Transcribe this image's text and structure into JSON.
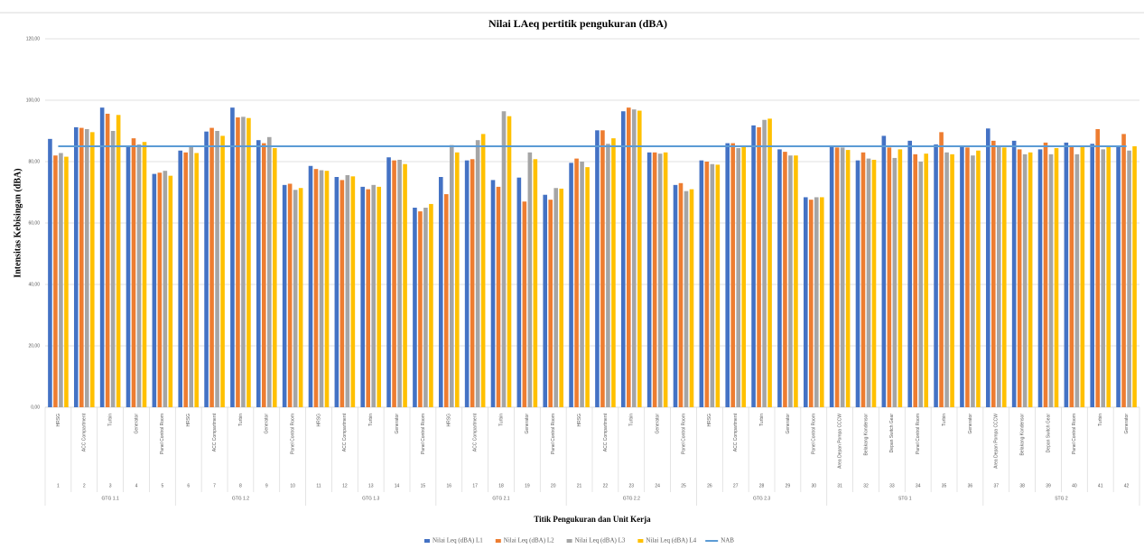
{
  "chart_data": {
    "type": "bar",
    "title": "Nilai LAeq pertitik pengukuran (dBA)",
    "x_label": "Titik Pengukuran dan Unit Kerja",
    "y_label": "Intensitas Kebisingan (dBA)",
    "ylim": [
      0,
      120
    ],
    "yticks": [
      {
        "value": 0,
        "label": "0,00"
      },
      {
        "value": 20,
        "label": "20,00"
      },
      {
        "value": 40,
        "label": "40,00"
      },
      {
        "value": 60,
        "label": "60,00"
      },
      {
        "value": 80,
        "label": "80,00"
      },
      {
        "value": 100,
        "label": "100,00"
      },
      {
        "value": 120,
        "label": "120,00"
      }
    ],
    "grid": true,
    "legend": "bottom",
    "groups": [
      {
        "name": "GTG 1.1",
        "categories": [
          {
            "no": 1,
            "label": "HRSG"
          },
          {
            "no": 2,
            "label": "ACC Compartment"
          },
          {
            "no": 3,
            "label": "Turbin"
          },
          {
            "no": 4,
            "label": "Generator"
          },
          {
            "no": 5,
            "label": "Panel Control Room"
          }
        ]
      },
      {
        "name": "GTG 1.2",
        "categories": [
          {
            "no": 6,
            "label": "HRSG"
          },
          {
            "no": 7,
            "label": "ACC Compartment"
          },
          {
            "no": 8,
            "label": "Turbin"
          },
          {
            "no": 9,
            "label": "Generator"
          },
          {
            "no": 10,
            "label": "Panel Control Room"
          }
        ]
      },
      {
        "name": "GTG 1.3",
        "categories": [
          {
            "no": 11,
            "label": "HRSG"
          },
          {
            "no": 12,
            "label": "ACC Compartment"
          },
          {
            "no": 13,
            "label": "Turbin"
          },
          {
            "no": 14,
            "label": "Generator"
          },
          {
            "no": 15,
            "label": "Panel Control Room"
          }
        ]
      },
      {
        "name": "GTG 2.1",
        "categories": [
          {
            "no": 16,
            "label": "HRSG"
          },
          {
            "no": 17,
            "label": "ACC Compartment"
          },
          {
            "no": 18,
            "label": "Turbin"
          },
          {
            "no": 19,
            "label": "Generator"
          },
          {
            "no": 20,
            "label": "Panel Control Room"
          }
        ]
      },
      {
        "name": "GTG 2.2",
        "categories": [
          {
            "no": 21,
            "label": "HRSG"
          },
          {
            "no": 22,
            "label": "ACC Compartment"
          },
          {
            "no": 23,
            "label": "Turbin"
          },
          {
            "no": 24,
            "label": "Generator"
          },
          {
            "no": 25,
            "label": "Panel Control Room"
          }
        ]
      },
      {
        "name": "GTG 2.3",
        "categories": [
          {
            "no": 26,
            "label": "HRSG"
          },
          {
            "no": 27,
            "label": "ACC Compartment"
          },
          {
            "no": 28,
            "label": "Turbin"
          },
          {
            "no": 29,
            "label": "Generator"
          },
          {
            "no": 30,
            "label": "Panel Control Room"
          }
        ]
      },
      {
        "name": "STG 1",
        "categories": [
          {
            "no": 31,
            "label": "Area Depan Pompa CCCW"
          },
          {
            "no": 32,
            "label": "Belakang Kondensor"
          },
          {
            "no": 33,
            "label": "Depan Switch Gear"
          },
          {
            "no": 34,
            "label": "Panel Control Room"
          },
          {
            "no": 35,
            "label": "Turbin"
          },
          {
            "no": 36,
            "label": "Generator"
          }
        ]
      },
      {
        "name": "STG 2",
        "categories": [
          {
            "no": 37,
            "label": "Area Depan Pompa CCCW"
          },
          {
            "no": 38,
            "label": "Belakang Kondensor"
          },
          {
            "no": 39,
            "label": "Depan Switch Gear"
          },
          {
            "no": 40,
            "label": "Panel Control Room"
          },
          {
            "no": 41,
            "label": "Turbin"
          },
          {
            "no": 42,
            "label": "Generator"
          }
        ]
      }
    ],
    "series": [
      {
        "name": "Nilai Leq (dBA) L1",
        "type": "bar",
        "color": "#4472c4",
        "values": [
          87.4,
          91.2,
          97.6,
          85,
          76,
          83.6,
          89.8,
          97.6,
          87,
          72.4,
          78.6,
          75,
          71.8,
          81.4,
          65,
          75,
          80.4,
          74,
          74.8,
          69.2,
          79.6,
          90.2,
          96.4,
          83,
          72.4,
          80.4,
          86,
          91.8,
          84,
          68.4,
          85,
          80.4,
          88.4,
          86.8,
          85.6,
          84.8,
          90.8,
          86.8,
          84,
          86.2,
          85.8,
          85
        ]
      },
      {
        "name": "Nilai Leq (dBA) L2",
        "type": "bar",
        "color": "#ed7d31",
        "values": [
          82,
          91,
          95.6,
          87.6,
          76.4,
          83,
          91,
          94.4,
          86,
          72.8,
          77.6,
          74,
          71,
          80.4,
          63.8,
          69.4,
          80.8,
          71.8,
          67,
          67.6,
          81,
          90.2,
          97.6,
          83,
          73,
          80,
          86,
          91.2,
          83.2,
          67.6,
          84.6,
          83,
          84.6,
          82.4,
          89.6,
          84.6,
          86.8,
          84,
          86.2,
          84.8,
          90.6,
          89
        ]
      },
      {
        "name": "Nilai Leq (dBA) L3",
        "type": "bar",
        "color": "#a5a5a5",
        "values": [
          82.8,
          90.6,
          90,
          85.6,
          77,
          85,
          90,
          94.6,
          88,
          70.8,
          77.2,
          75.6,
          72.4,
          80.6,
          65,
          85.4,
          87,
          96.4,
          83,
          71.4,
          80,
          85.8,
          97,
          82.6,
          70.4,
          79.2,
          84.4,
          93.6,
          82,
          68.4,
          84.6,
          81,
          81.2,
          80,
          83,
          82,
          85,
          82.4,
          82.4,
          82.4,
          84,
          83.6
        ]
      },
      {
        "name": "Nilai Leq (dBA) L4",
        "type": "bar",
        "color": "#ffc000",
        "values": [
          81.6,
          89.6,
          95.2,
          86.4,
          75.4,
          82.8,
          88.4,
          94.2,
          84.4,
          71.4,
          77,
          75.2,
          71.8,
          79.2,
          66.2,
          83,
          89,
          94.8,
          80.8,
          71.2,
          78.2,
          87.6,
          96.6,
          83,
          71,
          79,
          84.8,
          94,
          82,
          68.4,
          83.8,
          80.6,
          84,
          82.6,
          82.4,
          83.6,
          84.6,
          83,
          84.4,
          84.8,
          85,
          85
        ]
      },
      {
        "name": "NAB",
        "type": "line",
        "color": "#5b9bd5",
        "values": [
          85,
          85,
          85,
          85,
          85,
          85,
          85,
          85,
          85,
          85,
          85,
          85,
          85,
          85,
          85,
          85,
          85,
          85,
          85,
          85,
          85,
          85,
          85,
          85,
          85,
          85,
          85,
          85,
          85,
          85,
          85,
          85,
          85,
          85,
          85,
          85,
          85,
          85,
          85,
          85,
          85,
          85
        ]
      }
    ]
  }
}
